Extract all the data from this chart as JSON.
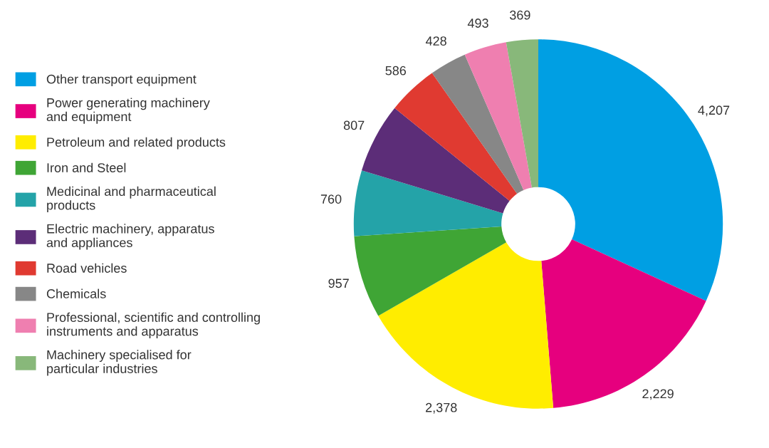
{
  "chart_data": {
    "type": "donut",
    "categories": [
      "Other transport equipment",
      "Power generating machinery\nand equipment",
      "Petroleum and related products",
      "Iron and Steel",
      "Medicinal and pharmaceutical\nproducts",
      "Electric machinery, apparatus\nand appliances",
      "Road vehicles",
      "Chemicals",
      "Professional, scientific and controlling\ninstruments and apparatus",
      "Machinery specialised for\nparticular industries"
    ],
    "values": [
      4207,
      2229,
      2378,
      957,
      760,
      807,
      586,
      428,
      493,
      369
    ],
    "colors": [
      "#009fe3",
      "#e6007e",
      "#ffed00",
      "#3fa535",
      "#24a3a8",
      "#5c2d78",
      "#e03a31",
      "#878787",
      "#ef7fb0",
      "#88b87a"
    ],
    "value_labels": [
      "4,207",
      "2,229",
      "2,378",
      "957",
      "760",
      "807",
      "586",
      "428",
      "493",
      "369"
    ],
    "legend": "left"
  }
}
